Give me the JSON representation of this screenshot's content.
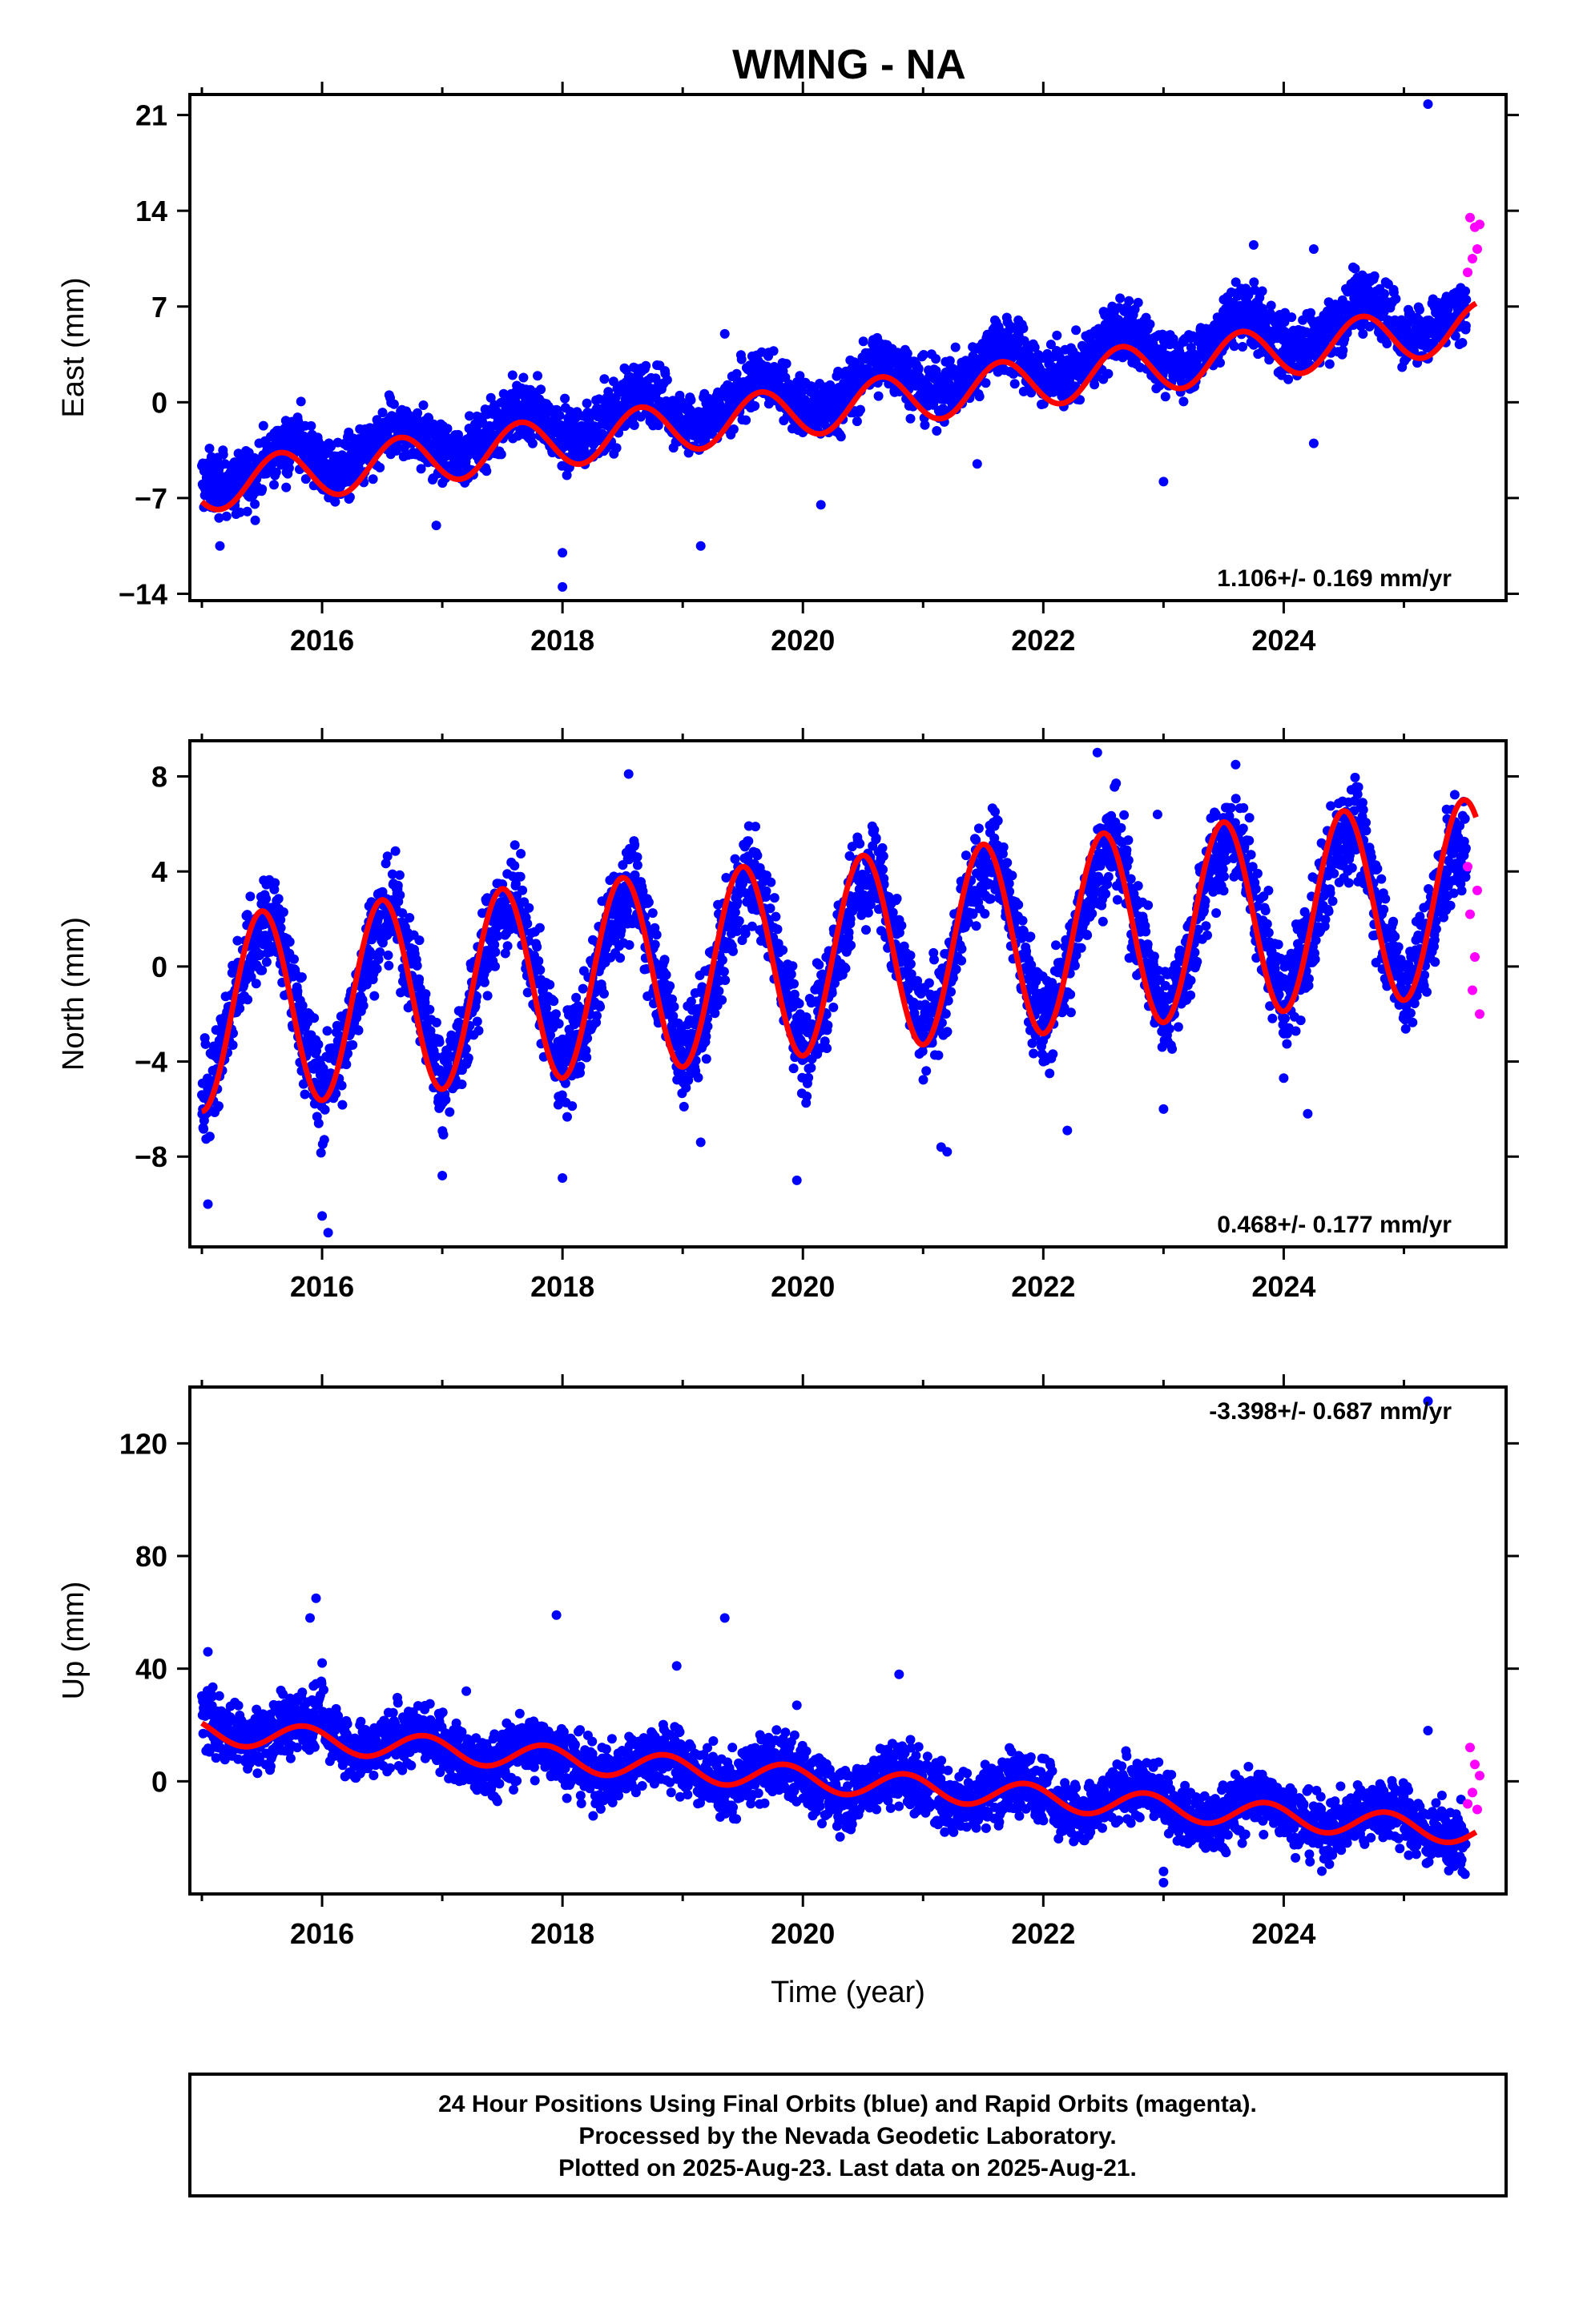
{
  "title": "WMNG - NA",
  "footer": {
    "line1": "24 Hour Positions Using Final Orbits (blue) and Rapid Orbits (magenta).",
    "line2": "Processed by the Nevada Geodetic Laboratory.",
    "line3": "Plotted on 2025-Aug-23. Last data on 2025-Aug-21."
  },
  "colors": {
    "final": "#0000ff",
    "rapid": "#ff00ff",
    "model": "#ff0000",
    "frame": "#000000"
  },
  "chart_data": [
    {
      "type": "scatter",
      "component": "east",
      "ylabel": "East (mm)",
      "xlabel": "",
      "rate": "1.106+/- 0.169 mm/yr",
      "rate_position": "bottom-right",
      "xlim": [
        2014.9,
        2025.85
      ],
      "ylim": [
        -14.5,
        22.5
      ],
      "xticks": [
        "2016",
        "2018",
        "2020",
        "2022",
        "2024"
      ],
      "xtick_values": [
        2016,
        2018,
        2020,
        2022,
        2024
      ],
      "yticks": [
        "-14",
        "-7",
        "0",
        "7",
        "14",
        "21"
      ],
      "ytick_values": [
        -14,
        -7,
        0,
        7,
        14,
        21
      ],
      "model": {
        "offset": -6.2,
        "t0": 2015.0,
        "rate": 1.106,
        "amplitude": 1.8,
        "phase_peak": 0.65,
        "end_year": 2025.6
      },
      "final_series": {
        "name": "Final Orbits",
        "x": [
          2015.0,
          2015.2,
          2015.4,
          2015.6,
          2015.8,
          2016.0,
          2016.2,
          2016.4,
          2016.6,
          2016.8,
          2017.0,
          2017.2,
          2017.4,
          2017.6,
          2017.8,
          2018.0,
          2018.2,
          2018.4,
          2018.6,
          2018.8,
          2019.0,
          2019.2,
          2019.4,
          2019.6,
          2019.8,
          2020.0,
          2020.2,
          2020.4,
          2020.6,
          2020.8,
          2021.0,
          2021.2,
          2021.4,
          2021.6,
          2021.8,
          2022.0,
          2022.2,
          2022.4,
          2022.6,
          2022.8,
          2023.0,
          2023.2,
          2023.4,
          2023.6,
          2023.8,
          2024.0,
          2024.2,
          2024.4,
          2024.6,
          2024.8,
          2025.0,
          2025.2,
          2025.4
        ],
        "y": [
          -5.8,
          -6.1,
          -5.6,
          -3.5,
          -2.6,
          -4.8,
          -5.0,
          -3.6,
          -1.8,
          -2.2,
          -3.9,
          -3.7,
          -2.2,
          -0.4,
          -0.9,
          -2.6,
          -2.4,
          -1.2,
          0.8,
          0.5,
          -1.5,
          -1.6,
          -0.4,
          1.9,
          1.2,
          -0.4,
          -0.5,
          0.8,
          3.0,
          2.6,
          0.8,
          0.9,
          2.0,
          4.4,
          3.7,
          1.8,
          1.9,
          3.2,
          5.2,
          4.8,
          2.9,
          3.0,
          4.3,
          6.6,
          6.0,
          4.0,
          4.1,
          5.3,
          7.6,
          7.1,
          5.0,
          5.1,
          6.2
        ],
        "outliers": [
          [
            2015.15,
            -10.5
          ],
          [
            2016.95,
            -9.0
          ],
          [
            2018.0,
            -13.5
          ],
          [
            2018.0,
            -11.0
          ],
          [
            2019.15,
            -10.5
          ],
          [
            2019.35,
            5.0
          ],
          [
            2020.15,
            -7.5
          ],
          [
            2021.45,
            -4.5
          ],
          [
            2023.0,
            -5.8
          ],
          [
            2023.75,
            11.5
          ],
          [
            2024.25,
            -3.0
          ],
          [
            2024.25,
            11.2
          ],
          [
            2025.2,
            21.8
          ]
        ]
      },
      "rapid_series": {
        "name": "Rapid Orbits",
        "x": [
          2025.53,
          2025.55,
          2025.57,
          2025.59,
          2025.61,
          2025.63
        ],
        "y": [
          9.5,
          13.5,
          10.5,
          12.8,
          11.2,
          13.0
        ]
      }
    },
    {
      "type": "scatter",
      "component": "north",
      "ylabel": "North (mm)",
      "xlabel": "",
      "rate": "0.468+/- 0.177 mm/yr",
      "rate_position": "bottom-right",
      "xlim": [
        2014.9,
        2025.85
      ],
      "ylim": [
        -11.8,
        9.5
      ],
      "xticks": [
        "2016",
        "2018",
        "2020",
        "2022",
        "2024"
      ],
      "xtick_values": [
        2016,
        2018,
        2020,
        2022,
        2024
      ],
      "yticks": [
        "-8",
        "-4",
        "0",
        "4",
        "8"
      ],
      "ytick_values": [
        -8,
        -4,
        0,
        4,
        8
      ],
      "model": {
        "offset": -2.0,
        "t0": 2015.0,
        "rate": 0.468,
        "amplitude": 4.1,
        "phase_peak": 0.5,
        "end_year": 2025.6
      },
      "final_series": {
        "name": "Final Orbits",
        "x": [
          2015.0,
          2015.2,
          2015.4,
          2015.6,
          2015.8,
          2016.0,
          2016.2,
          2016.4,
          2016.6,
          2016.8,
          2017.0,
          2017.2,
          2017.4,
          2017.6,
          2017.8,
          2018.0,
          2018.2,
          2018.4,
          2018.6,
          2018.8,
          2019.0,
          2019.2,
          2019.4,
          2019.6,
          2019.8,
          2020.0,
          2020.2,
          2020.4,
          2020.6,
          2020.8,
          2021.0,
          2021.2,
          2021.4,
          2021.6,
          2021.8,
          2022.0,
          2022.2,
          2022.4,
          2022.6,
          2022.8,
          2023.0,
          2023.2,
          2023.4,
          2023.6,
          2023.8,
          2024.0,
          2024.2,
          2024.4,
          2024.6,
          2024.8,
          2025.0,
          2025.2,
          2025.4
        ],
        "y": [
          -6.0,
          -3.0,
          1.0,
          2.2,
          -1.8,
          -5.5,
          -3.2,
          1.2,
          2.6,
          -1.2,
          -5.0,
          -2.6,
          1.6,
          3.0,
          -0.8,
          -4.5,
          -2.2,
          2.0,
          3.5,
          -0.4,
          -4.0,
          -1.7,
          2.4,
          4.0,
          0.1,
          -3.5,
          -1.2,
          2.9,
          4.5,
          0.5,
          -3.0,
          -0.8,
          3.4,
          4.9,
          1.0,
          -2.6,
          -0.3,
          3.8,
          5.4,
          1.3,
          -2.1,
          0.2,
          4.3,
          5.8,
          1.8,
          -1.6,
          0.7,
          4.7,
          6.2,
          2.2,
          -1.2,
          1.2,
          5.1
        ],
        "outliers": [
          [
            2015.05,
            -10.0
          ],
          [
            2016.05,
            -11.2
          ],
          [
            2016.0,
            -10.5
          ],
          [
            2017.0,
            -8.8
          ],
          [
            2018.0,
            -8.9
          ],
          [
            2018.55,
            8.1
          ],
          [
            2019.15,
            -7.4
          ],
          [
            2019.95,
            -9.0
          ],
          [
            2021.2,
            -7.8
          ],
          [
            2021.15,
            -7.6
          ],
          [
            2022.2,
            -6.9
          ],
          [
            2022.45,
            9.0
          ],
          [
            2022.95,
            6.4
          ],
          [
            2023.0,
            -6.0
          ],
          [
            2023.6,
            8.5
          ],
          [
            2024.2,
            -6.2
          ],
          [
            2024.0,
            -4.7
          ]
        ]
      },
      "rapid_series": {
        "name": "Rapid Orbits",
        "x": [
          2025.53,
          2025.55,
          2025.57,
          2025.59,
          2025.61,
          2025.63
        ],
        "y": [
          4.2,
          2.2,
          -1.0,
          0.4,
          3.2,
          -2.0
        ]
      }
    },
    {
      "type": "scatter",
      "component": "up",
      "ylabel": "Up (mm)",
      "xlabel": "Time (year)",
      "rate": "-3.398+/- 0.687 mm/yr",
      "rate_position": "top-right",
      "xlim": [
        2014.9,
        2025.85
      ],
      "ylim": [
        -40,
        140
      ],
      "xticks": [
        "2016",
        "2018",
        "2020",
        "2022",
        "2024"
      ],
      "xtick_values": [
        2016,
        2018,
        2020,
        2022,
        2024
      ],
      "yticks": [
        "0",
        "40",
        "80",
        "120"
      ],
      "ytick_values": [
        0,
        40,
        80,
        120
      ],
      "model": {
        "offset": 18.0,
        "t0": 2015.0,
        "rate": -3.398,
        "amplitude": 4.5,
        "phase_peak": 0.85,
        "end_year": 2025.6
      },
      "final_series": {
        "name": "Final Orbits",
        "x": [
          2015.0,
          2015.2,
          2015.4,
          2015.6,
          2015.8,
          2016.0,
          2016.2,
          2016.4,
          2016.6,
          2016.8,
          2017.0,
          2017.2,
          2017.4,
          2017.6,
          2017.8,
          2018.0,
          2018.2,
          2018.4,
          2018.6,
          2018.8,
          2019.0,
          2019.2,
          2019.4,
          2019.6,
          2019.8,
          2020.0,
          2020.2,
          2020.4,
          2020.6,
          2020.8,
          2021.0,
          2021.2,
          2021.4,
          2021.6,
          2021.8,
          2022.0,
          2022.2,
          2022.4,
          2022.6,
          2022.8,
          2023.0,
          2023.2,
          2023.4,
          2023.6,
          2023.8,
          2024.0,
          2024.2,
          2024.4,
          2024.6,
          2024.8,
          2025.0,
          2025.2,
          2025.4
        ],
        "y": [
          23,
          18,
          13,
          19,
          21,
          24,
          12,
          9,
          15,
          17,
          14,
          7,
          5,
          11,
          13,
          10,
          3,
          1,
          8,
          10,
          7,
          0,
          -3,
          4,
          6,
          3,
          -4,
          -6,
          1,
          3,
          0,
          -7,
          -9,
          -2,
          0,
          -3,
          -10,
          -12,
          -5,
          -2,
          -6,
          -13,
          -15,
          -9,
          -6,
          -9,
          -16,
          -18,
          -11,
          -9,
          -12,
          -19,
          -21
        ],
        "outliers": [
          [
            2015.05,
            46
          ],
          [
            2015.9,
            58
          ],
          [
            2015.95,
            65
          ],
          [
            2016.0,
            42
          ],
          [
            2017.2,
            32
          ],
          [
            2017.95,
            59
          ],
          [
            2018.95,
            41
          ],
          [
            2019.35,
            58
          ],
          [
            2019.95,
            27
          ],
          [
            2020.8,
            38
          ],
          [
            2023.0,
            -32
          ],
          [
            2023.0,
            -36
          ],
          [
            2025.2,
            135
          ],
          [
            2025.2,
            18
          ]
        ]
      },
      "rapid_series": {
        "name": "Rapid Orbits",
        "x": [
          2025.53,
          2025.55,
          2025.57,
          2025.59,
          2025.61,
          2025.63
        ],
        "y": [
          -8,
          12,
          -4,
          6,
          -10,
          2
        ]
      }
    }
  ]
}
